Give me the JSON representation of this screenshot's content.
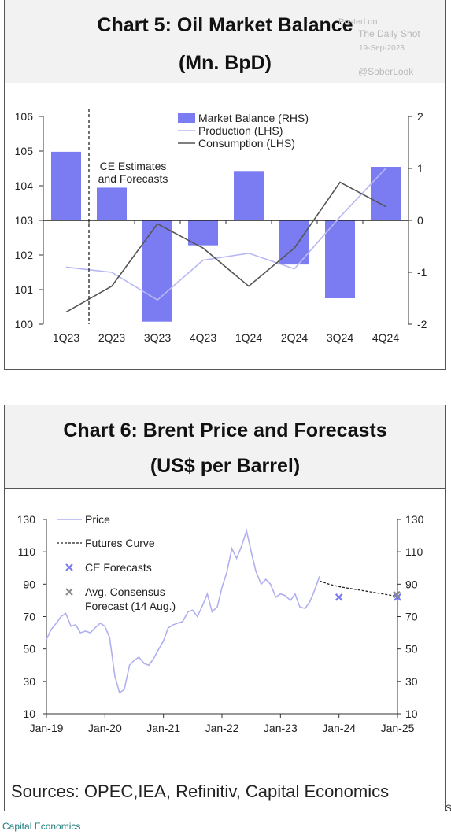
{
  "watermark": {
    "line1": "Posted on",
    "line2": "The Daily Shot",
    "line3": "19-Sep-2023",
    "line4": "@SoberLook"
  },
  "chart5": {
    "title_line1": "Chart 5: Oil Market Balance",
    "title_line2": "(Mn. BpD)"
  },
  "chart6": {
    "title_line1": "Chart 6: Brent Price and Forecasts",
    "title_line2": "(US$ per Barrel)"
  },
  "footer": {
    "sources": "Sources: OPEC,IEA, Refinitiv, Capital Economics",
    "credit": "Capital Economics",
    "fragment": "S"
  },
  "chart_data": [
    {
      "type": "bar",
      "title": "Chart 5: Oil Market Balance (Mn. BpD)",
      "categories": [
        "1Q23",
        "2Q23",
        "3Q23",
        "4Q23",
        "1Q24",
        "2Q24",
        "3Q24",
        "4Q24"
      ],
      "y_left": {
        "range": [
          100,
          106
        ],
        "ticks": [
          "100",
          "101",
          "102",
          "103",
          "104",
          "105",
          "106"
        ]
      },
      "y_right": {
        "range": [
          -2,
          2
        ],
        "ticks": [
          "-2",
          "-1",
          "0",
          "1",
          "2"
        ]
      },
      "series": [
        {
          "name": "Market Balance (RHS)",
          "kind": "bar",
          "axis": "right",
          "color": "#7b7bf2",
          "values": [
            1.32,
            0.63,
            -1.95,
            -0.48,
            0.95,
            -0.85,
            -1.5,
            1.03
          ]
        },
        {
          "name": "Production (LHS)",
          "kind": "line",
          "axis": "left",
          "color": "#b7b7f4",
          "values": [
            101.65,
            101.5,
            100.7,
            101.85,
            102.05,
            101.6,
            103.1,
            104.5
          ]
        },
        {
          "name": "Consumption (LHS)",
          "kind": "line",
          "axis": "left",
          "color": "#555555",
          "values": [
            100.35,
            101.1,
            102.9,
            102.2,
            101.1,
            102.2,
            104.1,
            103.4
          ]
        }
      ],
      "annotation": {
        "line1": "CE Estimates",
        "line2": "and Forecasts",
        "after_category": "1Q23"
      },
      "legend_position": "top-center"
    },
    {
      "type": "line",
      "title": "Chart 6: Brent Price and Forecasts (US$ per Barrel)",
      "x_ticks": [
        "Jan-19",
        "Jan-20",
        "Jan-21",
        "Jan-22",
        "Jan-23",
        "Jan-24",
        "Jan-25"
      ],
      "x_range": [
        2019.0,
        2025.0
      ],
      "y_left": {
        "range": [
          10,
          130
        ],
        "ticks": [
          "10",
          "30",
          "50",
          "70",
          "90",
          "110",
          "130"
        ]
      },
      "y_right": {
        "range": [
          10,
          130
        ],
        "ticks": [
          "10",
          "30",
          "50",
          "70",
          "90",
          "110",
          "130"
        ]
      },
      "series": [
        {
          "name": "Price",
          "kind": "line",
          "color": "#b0b0f0",
          "x": [
            2019.0,
            2019.08,
            2019.17,
            2019.25,
            2019.33,
            2019.42,
            2019.5,
            2019.58,
            2019.67,
            2019.75,
            2019.83,
            2019.92,
            2020.0,
            2020.08,
            2020.17,
            2020.25,
            2020.33,
            2020.42,
            2020.5,
            2020.58,
            2020.67,
            2020.75,
            2020.83,
            2020.92,
            2021.0,
            2021.08,
            2021.17,
            2021.25,
            2021.33,
            2021.42,
            2021.5,
            2021.58,
            2021.67,
            2021.75,
            2021.83,
            2021.92,
            2022.0,
            2022.08,
            2022.17,
            2022.25,
            2022.33,
            2022.42,
            2022.5,
            2022.58,
            2022.67,
            2022.75,
            2022.83,
            2022.92,
            2023.0,
            2023.08,
            2023.17,
            2023.25,
            2023.33,
            2023.42,
            2023.5,
            2023.58,
            2023.67
          ],
          "values": [
            56,
            62,
            66,
            70,
            72,
            64,
            65,
            60,
            61,
            60,
            63,
            66,
            64,
            57,
            33,
            23,
            25,
            40,
            43,
            45,
            41,
            40,
            44,
            50,
            55,
            63,
            65,
            66,
            67,
            73,
            74,
            70,
            77,
            84,
            73,
            76,
            88,
            97,
            112,
            106,
            113,
            123,
            110,
            98,
            90,
            93,
            90,
            82,
            84,
            83,
            80,
            84,
            76,
            75,
            79,
            86,
            95
          ]
        },
        {
          "name": "Futures Curve",
          "kind": "line",
          "dash": true,
          "color": "#222222",
          "x": [
            2023.67,
            2023.83,
            2024.0,
            2024.25,
            2024.5,
            2024.75,
            2025.0
          ],
          "values": [
            92,
            90,
            88.5,
            87,
            85.5,
            84,
            82.5
          ]
        },
        {
          "name": "CE Forecasts",
          "kind": "scatter",
          "marker": "x",
          "color": "#7b7bf2",
          "x": [
            2024.0,
            2025.0
          ],
          "values": [
            82,
            82
          ]
        },
        {
          "name": "Avg. Consensus Forecast (14 Aug.)",
          "kind": "scatter",
          "marker": "x",
          "color": "#8a8a8a",
          "x": [
            2025.0
          ],
          "values": [
            83.5
          ]
        }
      ],
      "legend_position": "top-left"
    }
  ]
}
